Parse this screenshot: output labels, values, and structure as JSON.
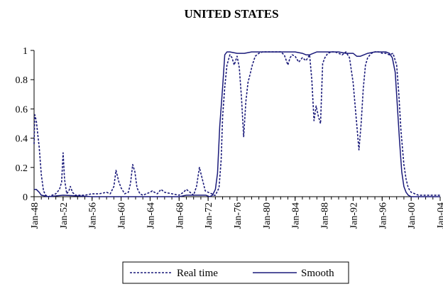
{
  "chart_data": {
    "type": "line",
    "title": "UNITED STATES",
    "xlabel": "",
    "ylabel": "",
    "ylim": [
      0,
      1
    ],
    "yticks": [
      "0",
      "0.2",
      "0.4",
      "0.6",
      "0.8",
      "1"
    ],
    "xlim": [
      1948,
      2004
    ],
    "xticks": [
      {
        "label": "Jan-48",
        "value": 1948
      },
      {
        "label": "Jan-52",
        "value": 1952
      },
      {
        "label": "Jan-56",
        "value": 1956
      },
      {
        "label": "Jan-60",
        "value": 1960
      },
      {
        "label": "Jan-64",
        "value": 1964
      },
      {
        "label": "Jan-68",
        "value": 1968
      },
      {
        "label": "Jan-72",
        "value": 1972
      },
      {
        "label": "Jan-76",
        "value": 1976
      },
      {
        "label": "Jan-80",
        "value": 1980
      },
      {
        "label": "Jan-84",
        "value": 1984
      },
      {
        "label": "Jan-88",
        "value": 1988
      },
      {
        "label": "Jan-92",
        "value": 1992
      },
      {
        "label": "Jan-96",
        "value": 1996
      },
      {
        "label": "Jan-00",
        "value": 2000
      },
      {
        "label": "Jan-04",
        "value": 2004
      }
    ],
    "legend_position": "bottom",
    "series": [
      {
        "name": "Real time",
        "style": "dotted",
        "color": "#1a1a7a",
        "x": [
          1948.0,
          1948.1,
          1948.3,
          1948.5,
          1948.7,
          1949.0,
          1949.3,
          1949.6,
          1950.0,
          1950.5,
          1951.0,
          1951.5,
          1951.8,
          1952.0,
          1952.2,
          1952.5,
          1952.8,
          1953.0,
          1953.3,
          1953.7,
          1954.0,
          1955.0,
          1956.0,
          1957.0,
          1958.0,
          1958.5,
          1959.0,
          1959.3,
          1959.7,
          1960.0,
          1960.5,
          1961.0,
          1961.3,
          1961.6,
          1961.9,
          1962.2,
          1962.6,
          1963.0,
          1964.0,
          1964.3,
          1964.6,
          1965.0,
          1965.5,
          1966.0,
          1967.0,
          1968.0,
          1968.6,
          1969.0,
          1969.5,
          1970.0,
          1970.4,
          1970.8,
          1971.2,
          1971.6,
          1972.0,
          1972.5,
          1972.8,
          1973.0,
          1973.2,
          1973.5,
          1973.8,
          1974.0,
          1974.3,
          1974.6,
          1975.0,
          1975.3,
          1975.6,
          1976.0,
          1976.3,
          1976.6,
          1976.9,
          1977.2,
          1977.5,
          1977.8,
          1978.1,
          1978.5,
          1979.0,
          1979.5,
          1980.0,
          1980.5,
          1981.0,
          1981.5,
          1982.0,
          1982.5,
          1983.0,
          1983.3,
          1983.6,
          1984.0,
          1984.5,
          1985.0,
          1985.5,
          1986.0,
          1986.3,
          1986.6,
          1986.9,
          1987.2,
          1987.5,
          1987.8,
          1988.1,
          1988.5,
          1989.0,
          1989.5,
          1990.0,
          1990.5,
          1991.0,
          1991.5,
          1992.0,
          1992.4,
          1992.8,
          1993.1,
          1993.4,
          1993.7,
          1994.0,
          1994.5,
          1995.0,
          1995.5,
          1996.0,
          1996.5,
          1997.0,
          1997.5,
          1998.0,
          1998.3,
          1998.6,
          1999.0,
          1999.3,
          1999.6,
          2000.0,
          2000.5,
          2001.0,
          2002.0,
          2003.0,
          2004.0
        ],
        "y": [
          0.36,
          0.56,
          0.52,
          0.43,
          0.34,
          0.15,
          0.04,
          0.01,
          0.0,
          0.01,
          0.02,
          0.05,
          0.1,
          0.3,
          0.12,
          0.02,
          0.04,
          0.07,
          0.03,
          0.01,
          0.01,
          0.01,
          0.02,
          0.02,
          0.03,
          0.02,
          0.07,
          0.18,
          0.1,
          0.06,
          0.02,
          0.03,
          0.09,
          0.22,
          0.17,
          0.06,
          0.02,
          0.01,
          0.03,
          0.04,
          0.03,
          0.02,
          0.05,
          0.03,
          0.02,
          0.01,
          0.03,
          0.05,
          0.03,
          0.01,
          0.07,
          0.2,
          0.12,
          0.04,
          0.03,
          0.02,
          0.01,
          0.01,
          0.03,
          0.06,
          0.25,
          0.55,
          0.75,
          0.9,
          0.97,
          0.95,
          0.9,
          0.96,
          0.88,
          0.68,
          0.41,
          0.65,
          0.78,
          0.84,
          0.9,
          0.96,
          0.98,
          0.99,
          0.99,
          0.99,
          0.99,
          0.99,
          0.99,
          0.97,
          0.9,
          0.95,
          0.97,
          0.96,
          0.92,
          0.95,
          0.93,
          0.97,
          0.8,
          0.52,
          0.62,
          0.55,
          0.5,
          0.91,
          0.95,
          0.98,
          0.99,
          0.99,
          0.98,
          0.97,
          0.99,
          0.95,
          0.78,
          0.55,
          0.32,
          0.5,
          0.74,
          0.9,
          0.95,
          0.98,
          0.99,
          0.99,
          0.98,
          0.98,
          0.97,
          0.98,
          0.9,
          0.7,
          0.45,
          0.22,
          0.12,
          0.06,
          0.03,
          0.02,
          0.01,
          0.01,
          0.01,
          0.01
        ]
      },
      {
        "name": "Smooth",
        "style": "solid",
        "color": "#1a1a7a",
        "x": [
          1948.0,
          1948.3,
          1948.7,
          1949.0,
          1950.0,
          1952.0,
          1956.0,
          1960.0,
          1964.0,
          1968.0,
          1969.0,
          1970.0,
          1971.0,
          1971.7,
          1972.2,
          1972.6,
          1973.0,
          1973.3,
          1973.6,
          1974.0,
          1974.3,
          1974.6,
          1975.0,
          1976.0,
          1977.0,
          1978.0,
          1980.0,
          1982.0,
          1984.0,
          1985.0,
          1985.5,
          1986.0,
          1987.0,
          1988.0,
          1990.0,
          1991.0,
          1992.0,
          1992.5,
          1993.0,
          1994.0,
          1995.0,
          1996.0,
          1996.5,
          1997.0,
          1997.4,
          1997.8,
          1998.1,
          1998.4,
          1998.7,
          1999.0,
          1999.3,
          1999.6,
          2000.0,
          2001.0,
          2002.0,
          2004.0
        ],
        "y": [
          0.05,
          0.05,
          0.03,
          0.01,
          0.0,
          0.01,
          0.0,
          0.0,
          0.0,
          0.0,
          0.01,
          0.01,
          0.01,
          0.01,
          0.0,
          0.01,
          0.05,
          0.16,
          0.48,
          0.75,
          0.97,
          0.99,
          0.99,
          0.98,
          0.98,
          0.99,
          0.99,
          0.99,
          0.99,
          0.98,
          0.97,
          0.97,
          0.99,
          0.99,
          0.99,
          0.98,
          0.98,
          0.96,
          0.96,
          0.98,
          0.99,
          0.99,
          0.99,
          0.98,
          0.95,
          0.85,
          0.62,
          0.38,
          0.17,
          0.07,
          0.03,
          0.01,
          0.0,
          0.0,
          0.0,
          0.0
        ]
      }
    ]
  }
}
